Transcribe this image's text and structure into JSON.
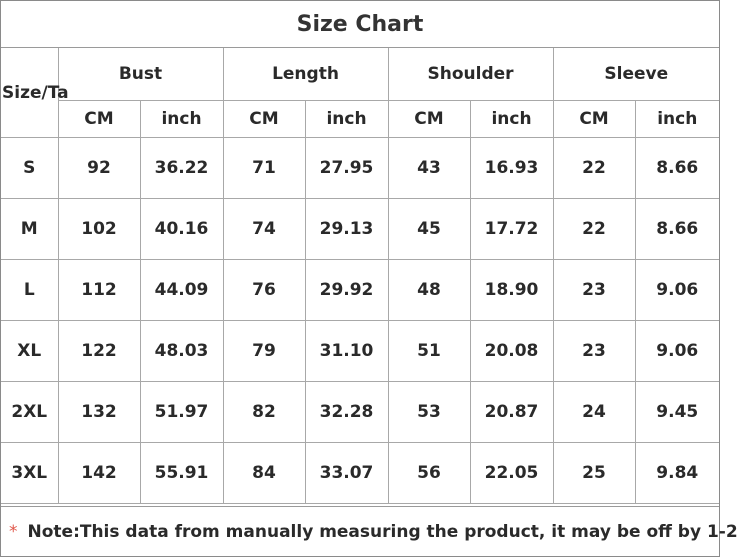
{
  "title": "Size Chart",
  "size_header": "Size/Ta",
  "groups": [
    "Bust",
    "Length",
    "Shoulder",
    "Sleeve"
  ],
  "units": [
    "CM",
    "inch",
    "CM",
    "inch",
    "CM",
    "inch",
    "CM",
    "inch"
  ],
  "rows": [
    [
      "S",
      "92",
      "36.22",
      "71",
      "27.95",
      "43",
      "16.93",
      "22",
      "8.66"
    ],
    [
      "M",
      "102",
      "40.16",
      "74",
      "29.13",
      "45",
      "17.72",
      "22",
      "8.66"
    ],
    [
      "L",
      "112",
      "44.09",
      "76",
      "29.92",
      "48",
      "18.90",
      "23",
      "9.06"
    ],
    [
      "XL",
      "122",
      "48.03",
      "79",
      "31.10",
      "51",
      "20.08",
      "23",
      "9.06"
    ],
    [
      "2XL",
      "132",
      "51.97",
      "82",
      "32.28",
      "53",
      "20.87",
      "24",
      "9.45"
    ],
    [
      "3XL",
      "142",
      "55.91",
      "84",
      "33.07",
      "56",
      "22.05",
      "25",
      "9.84"
    ]
  ],
  "note": {
    "marker": "*",
    "text": "Note:This data from manually measuring the product, it may be off by 1-2"
  }
}
